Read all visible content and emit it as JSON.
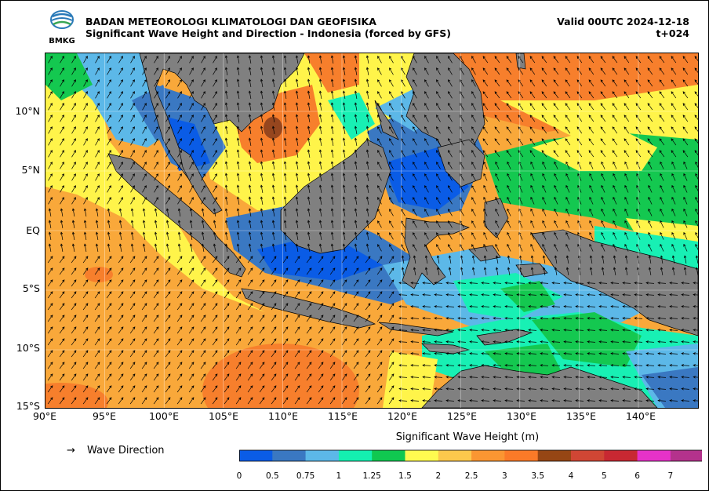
{
  "header": {
    "org": "BADAN METEOROLOGI KLIMATOLOGI DAN GEOFISIKA",
    "subtitle": "Significant Wave Height and Direction - Indonesia (forced by GFS)",
    "valid": "Valid 00UTC 2024-12-18",
    "step": "t+024",
    "logo_text": "BMKG"
  },
  "axes": {
    "lon_ticks": [
      "90°E",
      "95°E",
      "100°E",
      "105°E",
      "110°E",
      "115°E",
      "120°E",
      "125°E",
      "130°E",
      "135°E",
      "140°E"
    ],
    "lat_ticks": [
      "10°N",
      "5°N",
      "EQ",
      "5°S",
      "10°S",
      "15°S"
    ],
    "lon_range": [
      90,
      145
    ],
    "lat_range": [
      -15,
      15
    ]
  },
  "legend": {
    "arrow": "→",
    "label": "Wave Direction"
  },
  "colorbar": {
    "title": "Significant Wave Height (m)",
    "tick_labels": [
      "0",
      "0.5",
      "0.75",
      "1",
      "1.25",
      "1.5",
      "2",
      "2.5",
      "3",
      "3.5",
      "4",
      "5",
      "6",
      "7"
    ],
    "colors": [
      "#0a5ce6",
      "#3a78c2",
      "#5cb8e8",
      "#14f0b0",
      "#10c850",
      "#fffa50",
      "#fcc84c",
      "#fa9632",
      "#fa7a28",
      "#964614",
      "#d04634",
      "#c82832",
      "#e632c8",
      "#b4328c"
    ],
    "extend_color": "#784050"
  },
  "map_colors": {
    "land": "#808080",
    "deep_orange": "#f77f2c",
    "orange": "#f9a83a",
    "yellow": "#fff44a",
    "green": "#14c850",
    "cyan": "#18f0b4",
    "light_blue": "#5cb8e8",
    "mid_blue": "#3a78c2",
    "blue": "#0a5ce6",
    "brown": "#96461e"
  }
}
